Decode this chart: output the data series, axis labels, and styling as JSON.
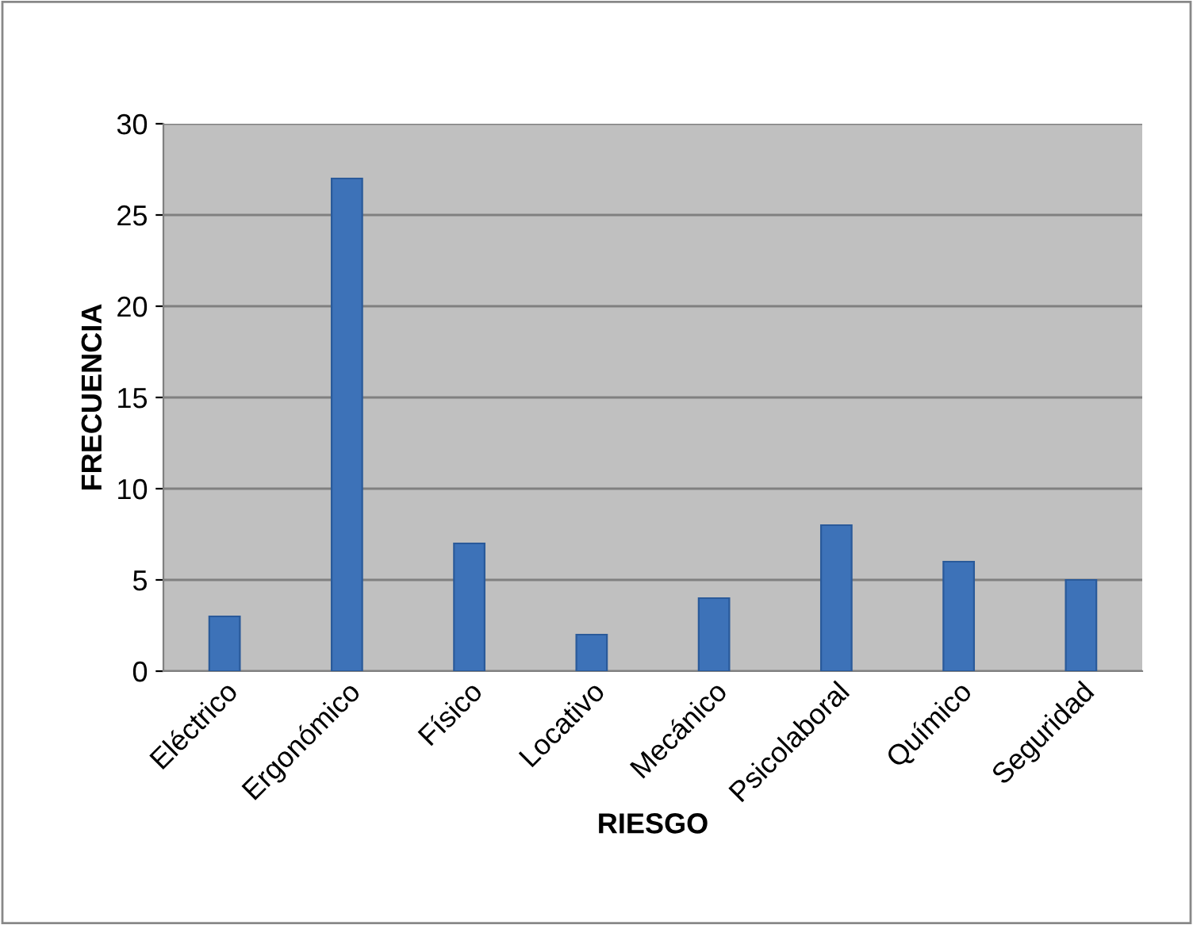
{
  "chart_data": {
    "type": "bar",
    "xlabel": "RIESGO",
    "ylabel": "FRECUENCIA",
    "categories": [
      "Eléctrico",
      "Ergonómico",
      "Físico",
      "Locativo",
      "Mecánico",
      "Psicolaboral",
      "Químico",
      "Seguridad"
    ],
    "values": [
      3,
      27,
      7,
      2,
      4,
      8,
      6,
      5
    ],
    "color": "#3d72b8",
    "ylim": [
      0,
      30
    ],
    "yticks": [
      0,
      5,
      10,
      15,
      20,
      25,
      30
    ],
    "grid": "y"
  }
}
